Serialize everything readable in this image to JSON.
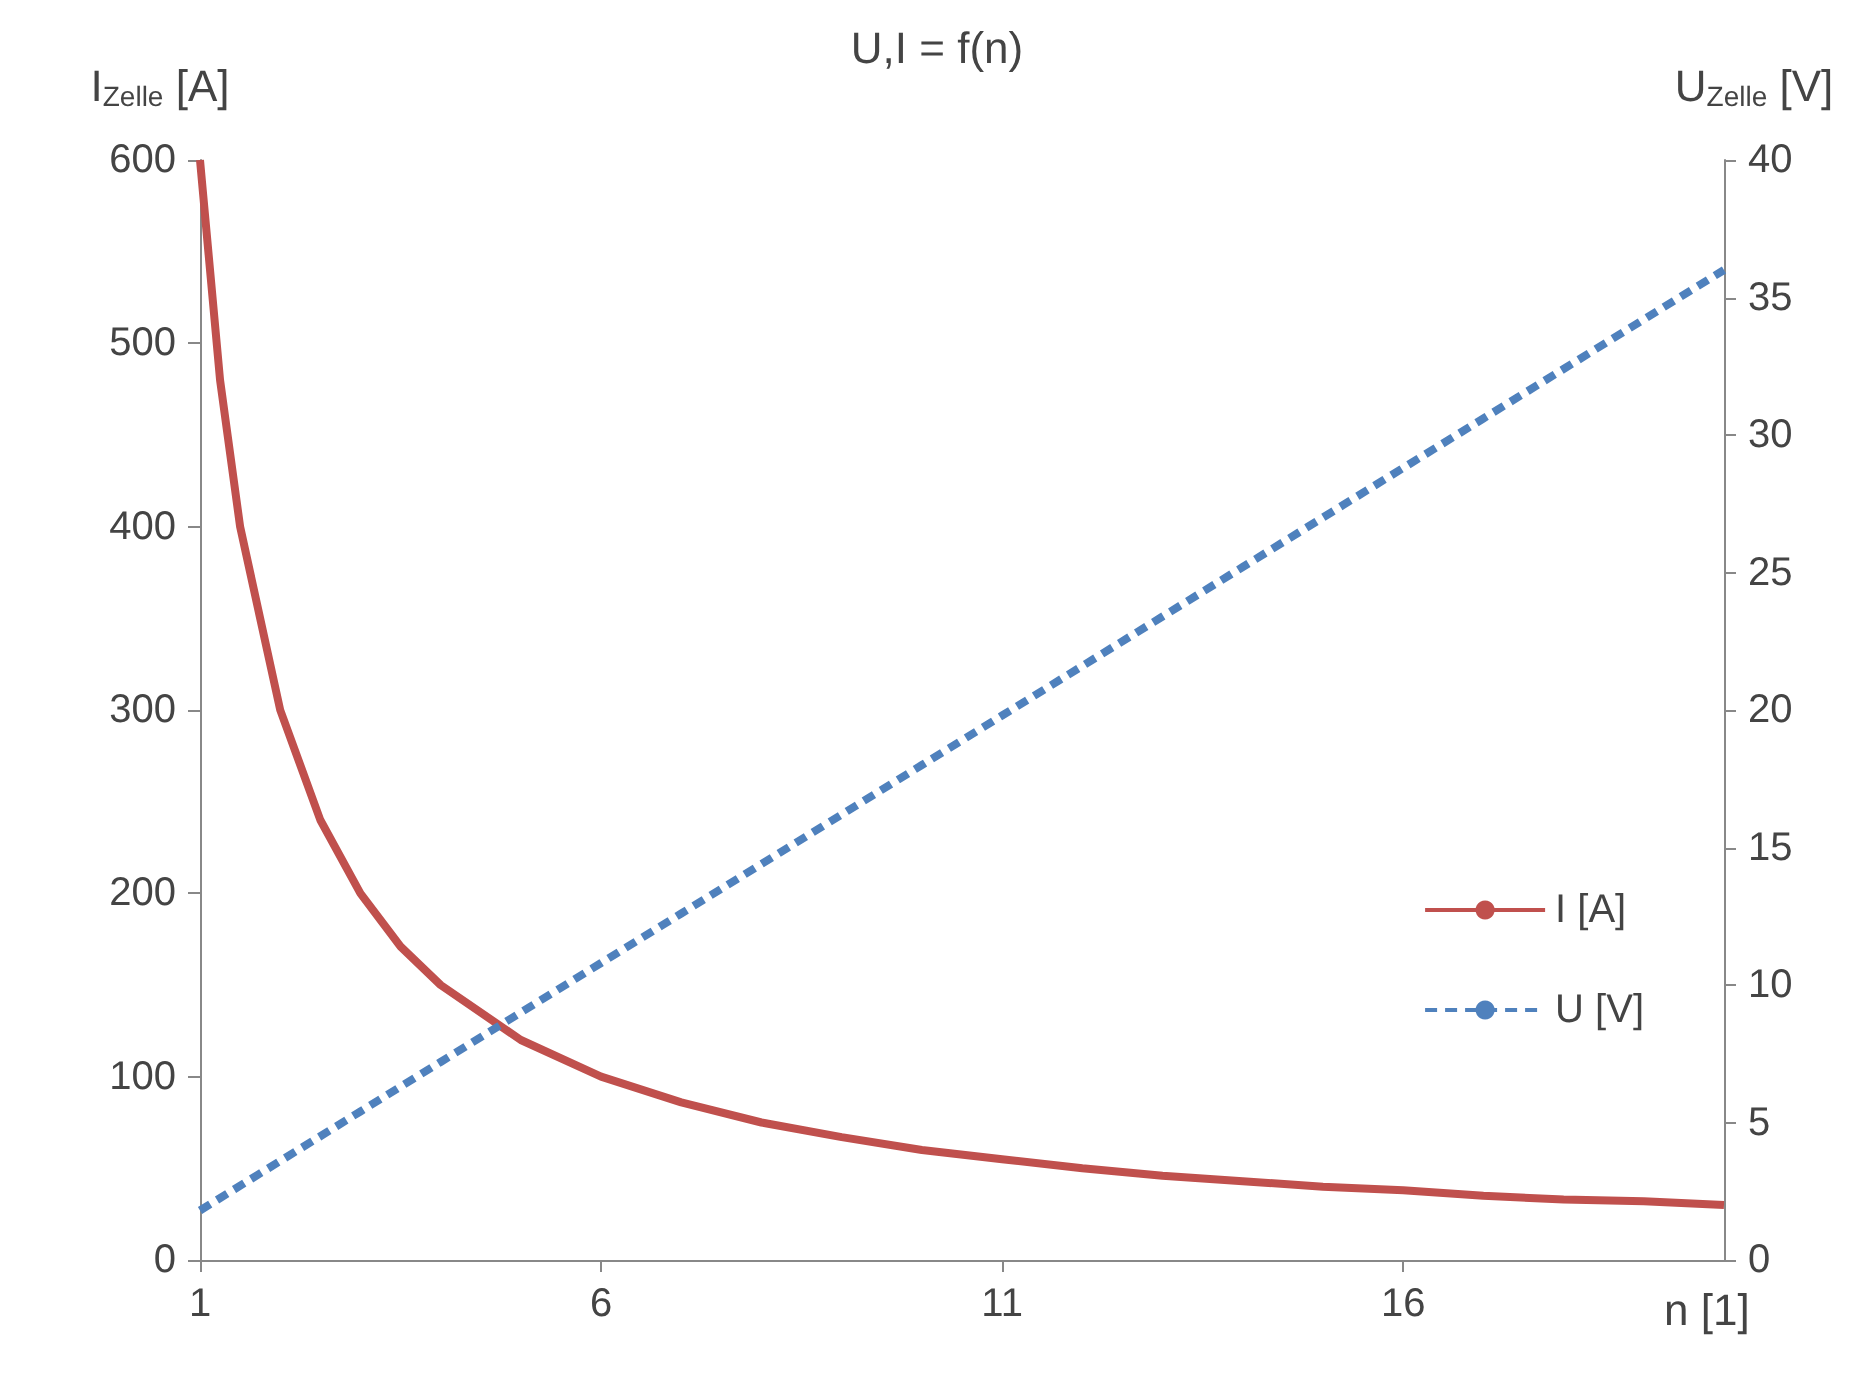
{
  "chart_data": {
    "type": "line",
    "title": "U,I = f(n)",
    "xlabel": "n [1]",
    "ylabel": "I$_{Zelle}$ [A]",
    "y2label": "U$_{Zelle}$ [V]",
    "x": [
      1,
      2,
      3,
      4,
      5,
      6,
      7,
      8,
      9,
      10,
      11,
      12,
      13,
      14,
      15,
      16,
      17,
      18,
      19,
      20
    ],
    "series": [
      {
        "name": "I [A]",
        "color": "#c0504d",
        "line_style": "solid",
        "x": [
          1,
          1.25,
          1.5,
          2,
          2.5,
          3,
          3.5,
          4,
          5,
          6,
          7,
          8,
          9,
          10,
          11,
          12,
          13,
          14,
          15,
          16,
          17,
          18,
          19,
          20
        ],
        "values": [
          600,
          480,
          400,
          300,
          240,
          200,
          171,
          150,
          120,
          100,
          86,
          75,
          67,
          60,
          55,
          50,
          46,
          43,
          40,
          38,
          35,
          33,
          32,
          30
        ]
      },
      {
        "name": "U [V]",
        "color": "#4f81bd",
        "line_style": "dashed",
        "axis": "y2",
        "values": [
          1.8,
          3.6,
          5.4,
          7.2,
          9,
          10.8,
          12.6,
          14.4,
          16.2,
          18,
          19.8,
          21.6,
          23.4,
          25.2,
          27,
          28.8,
          30.6,
          32.4,
          34.2,
          36
        ]
      }
    ],
    "xlim": [
      1,
      20
    ],
    "xticks": [
      1,
      6,
      11,
      16
    ],
    "ylim": [
      0,
      600
    ],
    "yticks": [
      0,
      100,
      200,
      300,
      400,
      500,
      600
    ],
    "y2lim": [
      0,
      40
    ],
    "y2ticks": [
      0,
      5,
      10,
      15,
      20,
      25,
      30,
      35,
      40
    ],
    "grid": false,
    "legend": "right",
    "marker": "none"
  }
}
